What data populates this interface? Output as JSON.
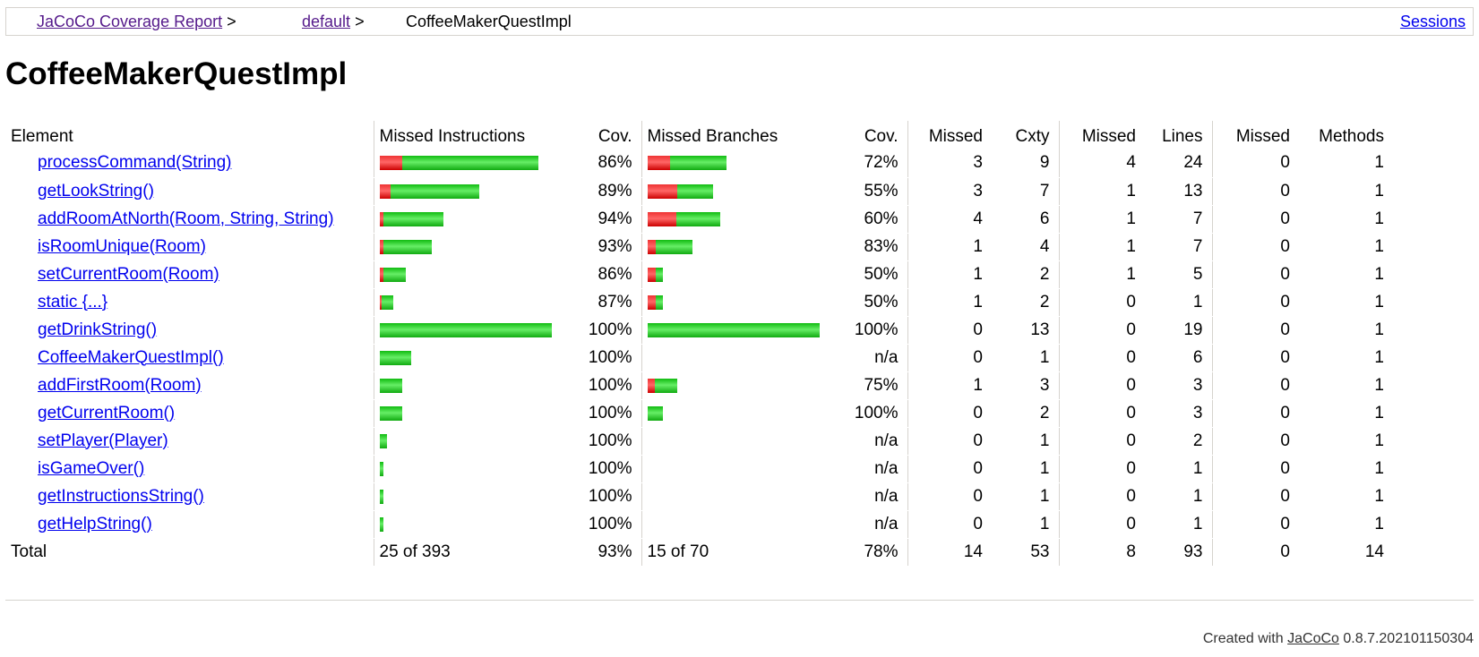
{
  "breadcrumb": {
    "report_link": "JaCoCo Coverage Report",
    "sep1": ">",
    "package_link": "default",
    "sep2": ">",
    "current": "CoffeeMakerQuestImpl",
    "sessions_link": "Sessions"
  },
  "page_title": "CoffeeMakerQuestImpl",
  "table": {
    "headers": {
      "element": "Element",
      "missed_instructions": "Missed Instructions",
      "cov1": "Cov.",
      "missed_branches": "Missed Branches",
      "cov2": "Cov.",
      "missed_cxty": "Missed",
      "cxty": "Cxty",
      "missed_lines": "Missed",
      "lines": "Lines",
      "missed_methods": "Missed",
      "methods": "Methods"
    },
    "rows": [
      {
        "name": "processCommand(String)",
        "instr_missed_frac": 0.14,
        "instr_width_frac": 0.92,
        "instr_cov": "86%",
        "br_missed_frac": 0.28,
        "br_width_frac": 0.46,
        "br_cov": "72%",
        "cxty_missed": "3",
        "cxty": "9",
        "lines_missed": "4",
        "lines": "24",
        "methods_missed": "0",
        "methods": "1"
      },
      {
        "name": "getLookString()",
        "instr_missed_frac": 0.11,
        "instr_width_frac": 0.58,
        "instr_cov": "89%",
        "br_missed_frac": 0.45,
        "br_width_frac": 0.38,
        "br_cov": "55%",
        "cxty_missed": "3",
        "cxty": "7",
        "lines_missed": "1",
        "lines": "13",
        "methods_missed": "0",
        "methods": "1"
      },
      {
        "name": "addRoomAtNorth(Room, String, String)",
        "instr_missed_frac": 0.06,
        "instr_width_frac": 0.37,
        "instr_cov": "94%",
        "br_missed_frac": 0.4,
        "br_width_frac": 0.42,
        "br_cov": "60%",
        "cxty_missed": "4",
        "cxty": "6",
        "lines_missed": "1",
        "lines": "7",
        "methods_missed": "0",
        "methods": "1"
      },
      {
        "name": "isRoomUnique(Room)",
        "instr_missed_frac": 0.07,
        "instr_width_frac": 0.3,
        "instr_cov": "93%",
        "br_missed_frac": 0.17,
        "br_width_frac": 0.26,
        "br_cov": "83%",
        "cxty_missed": "1",
        "cxty": "4",
        "lines_missed": "1",
        "lines": "7",
        "methods_missed": "0",
        "methods": "1"
      },
      {
        "name": "setCurrentRoom(Room)",
        "instr_missed_frac": 0.14,
        "instr_width_frac": 0.15,
        "instr_cov": "86%",
        "br_missed_frac": 0.5,
        "br_width_frac": 0.09,
        "br_cov": "50%",
        "cxty_missed": "1",
        "cxty": "2",
        "lines_missed": "1",
        "lines": "5",
        "methods_missed": "0",
        "methods": "1"
      },
      {
        "name": "static {...}",
        "instr_missed_frac": 0.13,
        "instr_width_frac": 0.08,
        "instr_cov": "87%",
        "br_missed_frac": 0.5,
        "br_width_frac": 0.09,
        "br_cov": "50%",
        "cxty_missed": "1",
        "cxty": "2",
        "lines_missed": "0",
        "lines": "1",
        "methods_missed": "0",
        "methods": "1"
      },
      {
        "name": "getDrinkString()",
        "instr_missed_frac": 0,
        "instr_width_frac": 1.0,
        "instr_cov": "100%",
        "br_missed_frac": 0,
        "br_width_frac": 1.0,
        "br_cov": "100%",
        "cxty_missed": "0",
        "cxty": "13",
        "lines_missed": "0",
        "lines": "19",
        "methods_missed": "0",
        "methods": "1"
      },
      {
        "name": "CoffeeMakerQuestImpl()",
        "instr_missed_frac": 0,
        "instr_width_frac": 0.18,
        "instr_cov": "100%",
        "br_missed_frac": 0,
        "br_width_frac": 0,
        "br_cov": "n/a",
        "cxty_missed": "0",
        "cxty": "1",
        "lines_missed": "0",
        "lines": "6",
        "methods_missed": "0",
        "methods": "1"
      },
      {
        "name": "addFirstRoom(Room)",
        "instr_missed_frac": 0,
        "instr_width_frac": 0.13,
        "instr_cov": "100%",
        "br_missed_frac": 0.25,
        "br_width_frac": 0.17,
        "br_cov": "75%",
        "cxty_missed": "1",
        "cxty": "3",
        "lines_missed": "0",
        "lines": "3",
        "methods_missed": "0",
        "methods": "1"
      },
      {
        "name": "getCurrentRoom()",
        "instr_missed_frac": 0,
        "instr_width_frac": 0.13,
        "instr_cov": "100%",
        "br_missed_frac": 0,
        "br_width_frac": 0.09,
        "br_cov": "100%",
        "cxty_missed": "0",
        "cxty": "2",
        "lines_missed": "0",
        "lines": "3",
        "methods_missed": "0",
        "methods": "1"
      },
      {
        "name": "setPlayer(Player)",
        "instr_missed_frac": 0,
        "instr_width_frac": 0.04,
        "instr_cov": "100%",
        "br_missed_frac": 0,
        "br_width_frac": 0,
        "br_cov": "n/a",
        "cxty_missed": "0",
        "cxty": "1",
        "lines_missed": "0",
        "lines": "2",
        "methods_missed": "0",
        "methods": "1"
      },
      {
        "name": "isGameOver()",
        "instr_missed_frac": 0,
        "instr_width_frac": 0.02,
        "instr_cov": "100%",
        "br_missed_frac": 0,
        "br_width_frac": 0,
        "br_cov": "n/a",
        "cxty_missed": "0",
        "cxty": "1",
        "lines_missed": "0",
        "lines": "1",
        "methods_missed": "0",
        "methods": "1"
      },
      {
        "name": "getInstructionsString()",
        "instr_missed_frac": 0,
        "instr_width_frac": 0.02,
        "instr_cov": "100%",
        "br_missed_frac": 0,
        "br_width_frac": 0,
        "br_cov": "n/a",
        "cxty_missed": "0",
        "cxty": "1",
        "lines_missed": "0",
        "lines": "1",
        "methods_missed": "0",
        "methods": "1"
      },
      {
        "name": "getHelpString()",
        "instr_missed_frac": 0,
        "instr_width_frac": 0.02,
        "instr_cov": "100%",
        "br_missed_frac": 0,
        "br_width_frac": 0,
        "br_cov": "n/a",
        "cxty_missed": "0",
        "cxty": "1",
        "lines_missed": "0",
        "lines": "1",
        "methods_missed": "0",
        "methods": "1"
      }
    ],
    "total": {
      "label": "Total",
      "instr": "25 of 393",
      "instr_cov": "93%",
      "br": "15 of 70",
      "br_cov": "78%",
      "cxty_missed": "14",
      "cxty": "53",
      "lines_missed": "8",
      "lines": "93",
      "methods_missed": "0",
      "methods": "14"
    }
  },
  "footer": {
    "prefix": "Created with",
    "link": "JaCoCo",
    "version": "0.8.7.202101150304"
  },
  "colors": {
    "link": "#0000ee",
    "visited_link": "#551a8b",
    "bar_missed": "#e33333",
    "bar_covered": "#22bb22",
    "border": "#d6d3ce"
  }
}
